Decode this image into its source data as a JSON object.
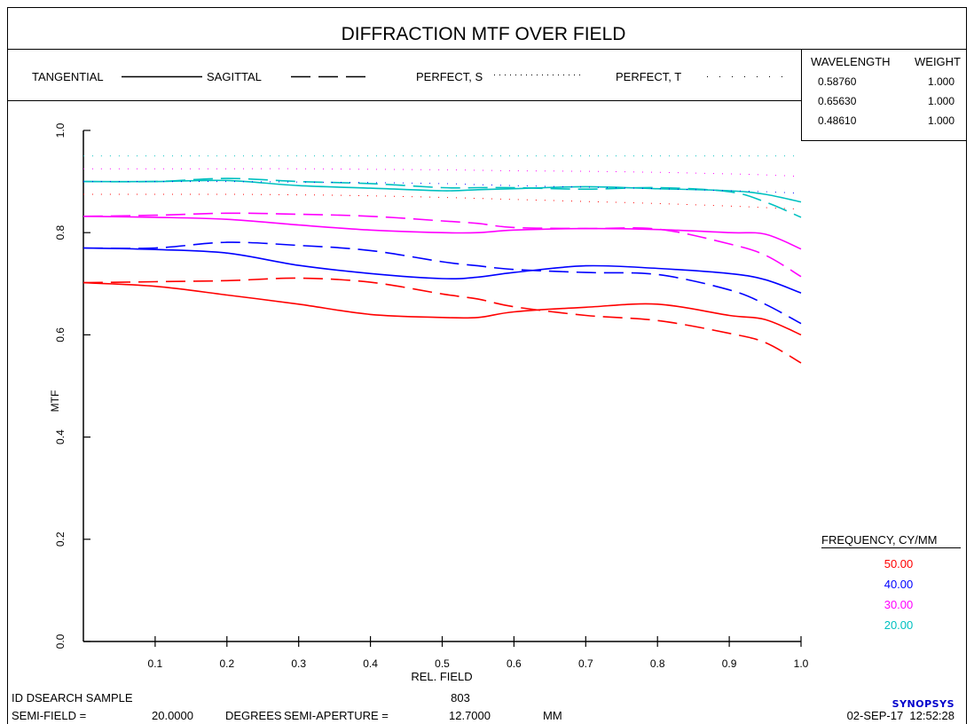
{
  "title": "DIFFRACTION MTF OVER FIELD",
  "legend_styles": {
    "tangential": "TANGENTIAL",
    "sagittal": "SAGITTAL",
    "perfect_s": "PERFECT, S",
    "perfect_t": "PERFECT, T"
  },
  "wavelength_table": {
    "header_wavelength": "WAVELENGTH",
    "header_weight": "WEIGHT",
    "rows": [
      {
        "wavelength": "0.58760",
        "weight": "1.000"
      },
      {
        "wavelength": "0.65630",
        "weight": "1.000"
      },
      {
        "wavelength": "0.48610",
        "weight": "1.000"
      }
    ]
  },
  "frequency_legend": {
    "title": "FREQUENCY, CY/MM",
    "items": [
      {
        "label": "50.00",
        "color": "#ff0000"
      },
      {
        "label": "40.00",
        "color": "#0000ff"
      },
      {
        "label": "30.00",
        "color": "#ff00ff"
      },
      {
        "label": "20.00",
        "color": "#00c0c0"
      }
    ]
  },
  "footer": {
    "id_label": "ID DSEARCH SAMPLE",
    "number": "803",
    "semi_field_label": "SEMI-FIELD =",
    "semi_field_value": "20.0000",
    "degrees_label": "DEGREES",
    "semi_aperture_label": "SEMI-APERTURE =",
    "semi_aperture_value": "12.7000",
    "mm_label": "MM",
    "logo": "SYNOPSYS",
    "datetime": "02-SEP-17  12:52:28"
  },
  "chart_data": {
    "type": "line",
    "xlabel": "REL. FIELD",
    "ylabel": "MTF",
    "xlim": [
      0,
      1.0
    ],
    "ylim": [
      0,
      1.0
    ],
    "x_ticks": [
      "0.1",
      "0.2",
      "0.3",
      "0.4",
      "0.5",
      "0.6",
      "0.7",
      "0.8",
      "0.9",
      "1.0"
    ],
    "y_ticks": [
      "0.0",
      "0.2",
      "0.4",
      "0.6",
      "0.8",
      "1.0"
    ],
    "x": [
      0,
      0.1,
      0.2,
      0.3,
      0.4,
      0.5,
      0.55,
      0.6,
      0.7,
      0.8,
      0.9,
      0.95,
      1.0
    ],
    "series": [
      {
        "frequency": "50.00",
        "style": "tangential",
        "color": "#ff0000",
        "values": [
          0.702,
          0.695,
          0.678,
          0.66,
          0.64,
          0.634,
          0.634,
          0.645,
          0.654,
          0.66,
          0.638,
          0.63,
          0.6
        ]
      },
      {
        "frequency": "50.00",
        "style": "sagittal",
        "color": "#ff0000",
        "values": [
          0.702,
          0.704,
          0.706,
          0.711,
          0.703,
          0.68,
          0.67,
          0.655,
          0.638,
          0.628,
          0.603,
          0.585,
          0.545
        ]
      },
      {
        "frequency": "40.00",
        "style": "tangential",
        "color": "#0000ff",
        "values": [
          0.77,
          0.767,
          0.76,
          0.736,
          0.72,
          0.71,
          0.713,
          0.722,
          0.735,
          0.73,
          0.72,
          0.708,
          0.682
        ]
      },
      {
        "frequency": "40.00",
        "style": "sagittal",
        "color": "#0000ff",
        "values": [
          0.77,
          0.77,
          0.781,
          0.775,
          0.765,
          0.743,
          0.735,
          0.728,
          0.722,
          0.718,
          0.688,
          0.66,
          0.622
        ]
      },
      {
        "frequency": "30.00",
        "style": "tangential",
        "color": "#ff00ff",
        "values": [
          0.832,
          0.83,
          0.826,
          0.815,
          0.805,
          0.8,
          0.8,
          0.805,
          0.808,
          0.806,
          0.8,
          0.797,
          0.768
        ]
      },
      {
        "frequency": "30.00",
        "style": "sagittal",
        "color": "#ff00ff",
        "values": [
          0.832,
          0.834,
          0.838,
          0.836,
          0.832,
          0.823,
          0.818,
          0.81,
          0.808,
          0.807,
          0.778,
          0.756,
          0.714
        ]
      },
      {
        "frequency": "20.00",
        "style": "tangential",
        "color": "#00c0c0",
        "values": [
          0.9,
          0.9,
          0.902,
          0.892,
          0.887,
          0.882,
          0.884,
          0.886,
          0.89,
          0.886,
          0.882,
          0.875,
          0.86
        ]
      },
      {
        "frequency": "20.00",
        "style": "sagittal",
        "color": "#00c0c0",
        "values": [
          0.9,
          0.9,
          0.906,
          0.9,
          0.896,
          0.888,
          0.888,
          0.888,
          0.885,
          0.888,
          0.88,
          0.86,
          0.83
        ]
      },
      {
        "frequency": "",
        "style": "perfect",
        "color": "#00c0c0",
        "values": [
          0.95,
          0.95,
          0.95,
          0.95,
          0.95,
          0.95,
          0.95,
          0.95,
          0.95,
          0.95,
          0.95,
          0.95,
          0.95
        ]
      },
      {
        "frequency": "",
        "style": "perfect",
        "color": "#ff00ff",
        "values": [
          0.925,
          0.925,
          0.925,
          0.925,
          0.924,
          0.923,
          0.922,
          0.921,
          0.92,
          0.918,
          0.915,
          0.913,
          0.91
        ]
      },
      {
        "frequency": "",
        "style": "perfect",
        "color": "#0000ff",
        "values": [
          0.9,
          0.9,
          0.9,
          0.899,
          0.898,
          0.896,
          0.894,
          0.892,
          0.889,
          0.886,
          0.882,
          0.88,
          0.877
        ]
      },
      {
        "frequency": "",
        "style": "perfect",
        "color": "#ff0000",
        "values": [
          0.875,
          0.875,
          0.875,
          0.874,
          0.872,
          0.869,
          0.867,
          0.865,
          0.861,
          0.857,
          0.852,
          0.849,
          0.846
        ]
      }
    ]
  }
}
